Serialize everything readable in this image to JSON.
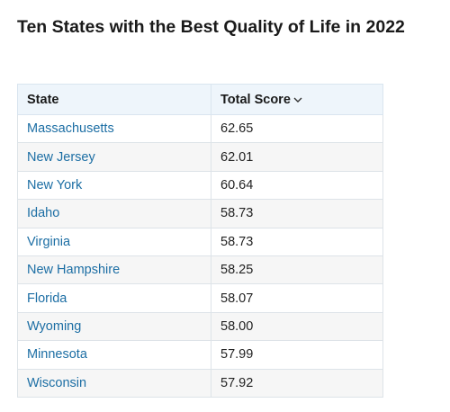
{
  "title": "Ten States with the Best Quality of Life in 2022",
  "table": {
    "header": [
      "State",
      "Total Score"
    ],
    "rows": [
      [
        "Massachusetts",
        "62.65"
      ],
      [
        "New Jersey",
        "62.01"
      ],
      [
        "New York",
        "60.64"
      ],
      [
        "Idaho",
        "58.73"
      ],
      [
        "Virginia",
        "58.73"
      ],
      [
        "New Hampshire",
        "58.25"
      ],
      [
        "Florida",
        "58.07"
      ],
      [
        "Wyoming",
        "58.00"
      ],
      [
        "Minnesota",
        "57.99"
      ],
      [
        "Wisconsin",
        "57.92"
      ]
    ]
  }
}
